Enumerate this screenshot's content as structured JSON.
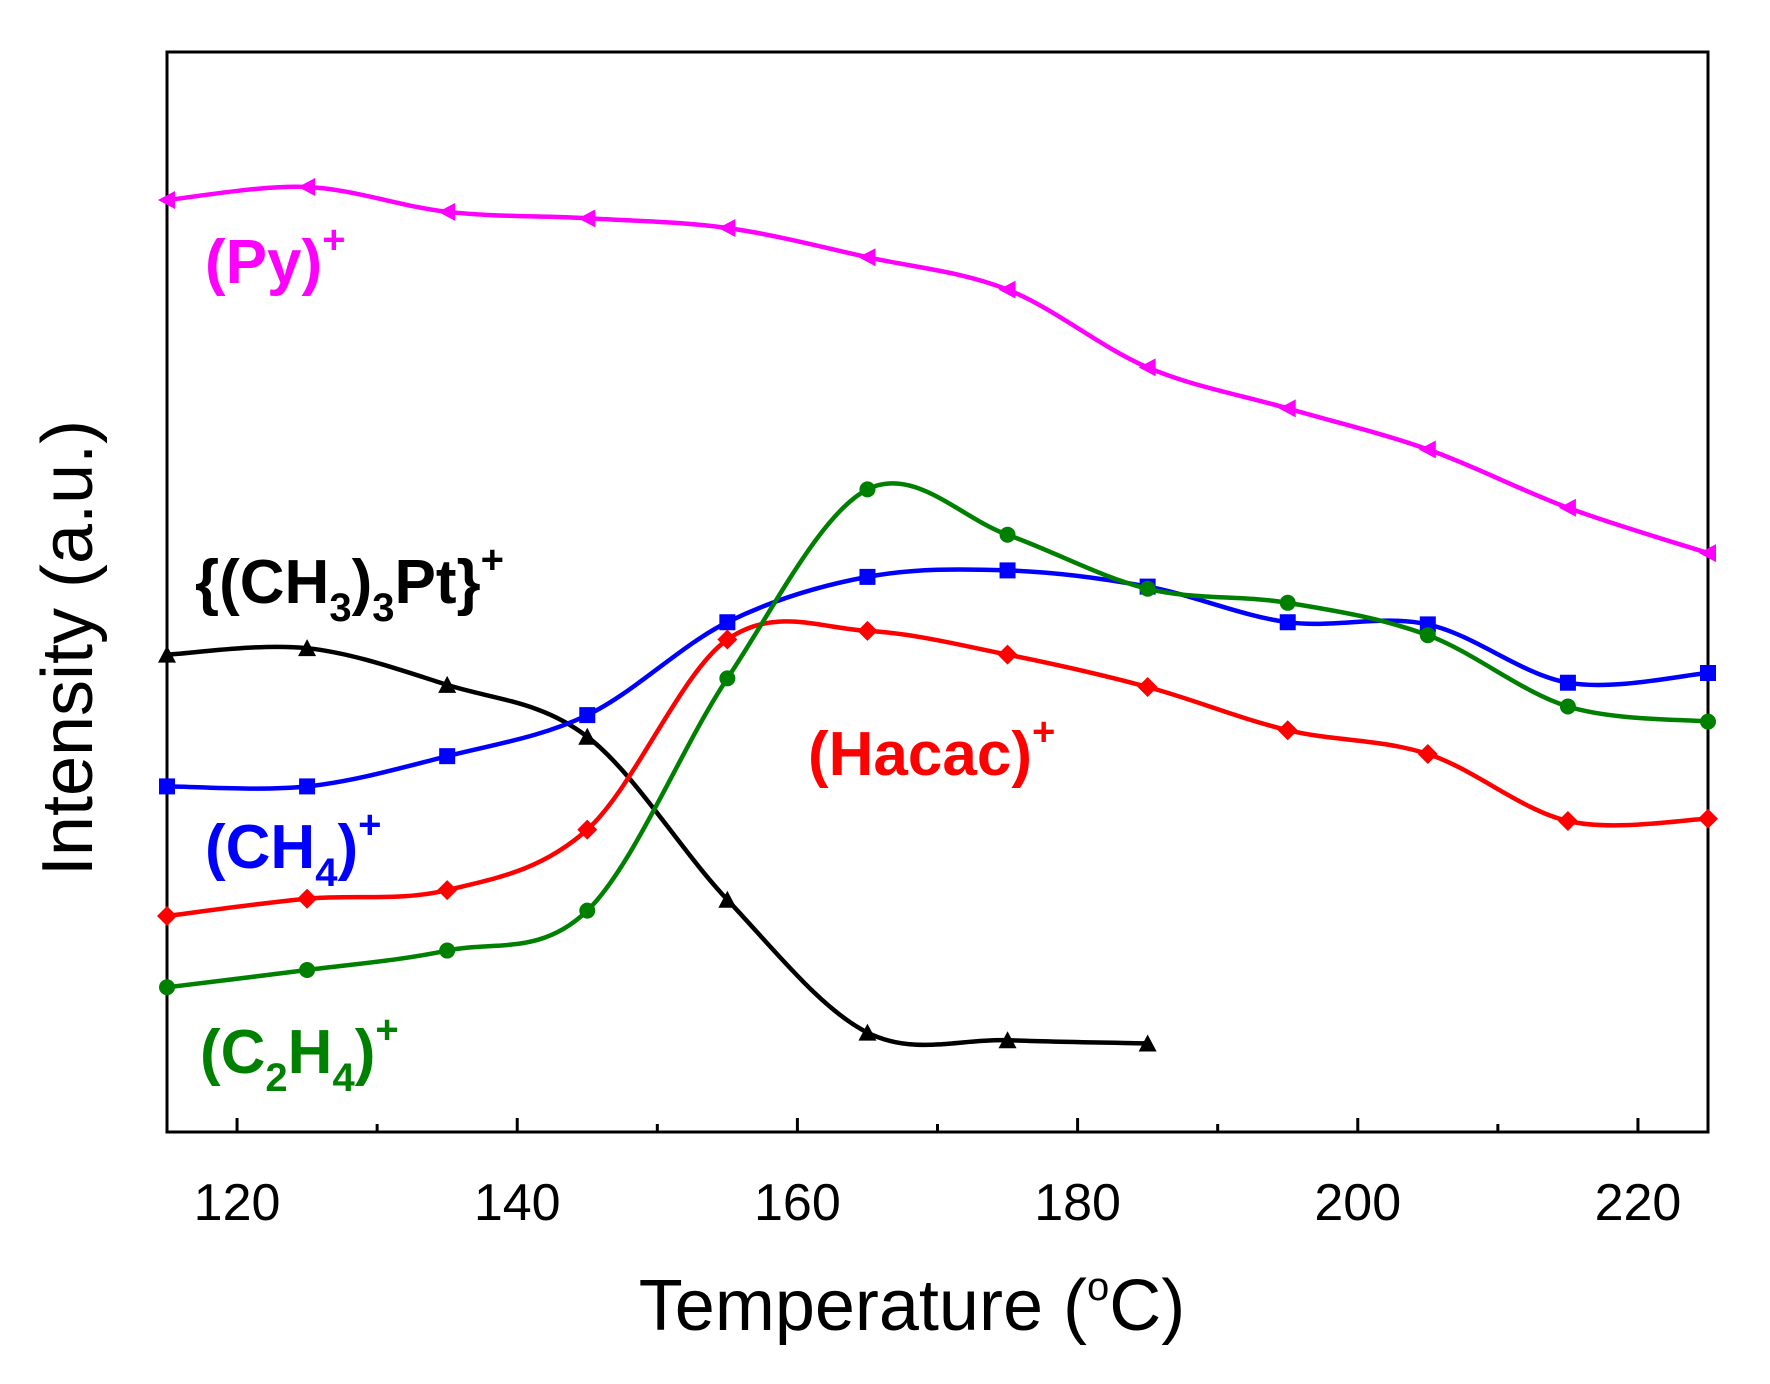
{
  "chart_data": {
    "type": "line",
    "title": "",
    "xlabel": "Temperature (",
    "xlabel_sup": "o",
    "xlabel_end": "C)",
    "ylabel": "Intensity (a.u.)",
    "xlim": [
      115,
      225
    ],
    "ylim": [
      0,
      100
    ],
    "yticks_shown": false,
    "x_ticks": [
      120,
      140,
      160,
      180,
      200,
      220
    ],
    "x_tick_labels": [
      "120",
      "140",
      "160",
      "180",
      "200",
      "220"
    ],
    "series": [
      {
        "name": "(Py)+",
        "label_parts": [
          {
            "t": "(Py)",
            "s": "n"
          },
          {
            "t": "+",
            "s": "sup"
          }
        ],
        "color": "#ff00ff",
        "marker": "triangle-left",
        "x": [
          115,
          125,
          135,
          145,
          155,
          165,
          175,
          185,
          195,
          205,
          215,
          225
        ],
        "y": [
          86.3,
          87.5,
          85.2,
          84.6,
          83.7,
          81.0,
          78.0,
          70.8,
          67.0,
          63.2,
          57.8,
          53.6
        ]
      },
      {
        "name": "{(CH3)3Pt}+",
        "label_parts": [
          {
            "t": "{(CH",
            "s": "n"
          },
          {
            "t": "3",
            "s": "sub"
          },
          {
            "t": ")",
            "s": "n"
          },
          {
            "t": "3",
            "s": "sub"
          },
          {
            "t": "Pt}",
            "s": "n"
          },
          {
            "t": "+",
            "s": "sup"
          }
        ],
        "color": "#000000",
        "marker": "triangle-up",
        "x": [
          115,
          125,
          135,
          145,
          155,
          165,
          175,
          185
        ],
        "y": [
          44.2,
          44.8,
          41.4,
          36.6,
          21.5,
          9.2,
          8.5,
          8.2
        ]
      },
      {
        "name": "(CH4)+",
        "label_parts": [
          {
            "t": "(CH",
            "s": "n"
          },
          {
            "t": "4",
            "s": "sub"
          },
          {
            "t": ")",
            "s": "n"
          },
          {
            "t": "+",
            "s": "sup"
          }
        ],
        "color": "#0000ff",
        "marker": "square",
        "x": [
          115,
          125,
          135,
          145,
          155,
          165,
          175,
          185,
          195,
          205,
          215,
          225
        ],
        "y": [
          32.0,
          32.0,
          34.8,
          38.6,
          47.2,
          51.4,
          52.0,
          50.5,
          47.2,
          47.0,
          41.6,
          42.5
        ]
      },
      {
        "name": "(Hacac)+",
        "label_parts": [
          {
            "t": "(Hacac)",
            "s": "n"
          },
          {
            "t": "+",
            "s": "sup"
          }
        ],
        "color": "#ff0000",
        "marker": "diamond",
        "x": [
          115,
          125,
          135,
          145,
          155,
          165,
          175,
          185,
          195,
          205,
          215,
          225
        ],
        "y": [
          20.0,
          21.6,
          22.4,
          28.0,
          45.6,
          46.4,
          44.2,
          41.2,
          37.2,
          35.0,
          28.8,
          29.0
        ]
      },
      {
        "name": "(C2H4)+",
        "label_parts": [
          {
            "t": "(C",
            "s": "n"
          },
          {
            "t": "2",
            "s": "sub"
          },
          {
            "t": "H",
            "s": "n"
          },
          {
            "t": "4",
            "s": "sub"
          },
          {
            "t": ")",
            "s": "n"
          },
          {
            "t": "+",
            "s": "sup"
          }
        ],
        "color": "#008000",
        "marker": "circle",
        "x": [
          115,
          125,
          135,
          145,
          155,
          165,
          175,
          185,
          195,
          205,
          215,
          225
        ],
        "y": [
          13.4,
          15.0,
          16.8,
          20.5,
          42.0,
          59.5,
          55.3,
          50.3,
          49.0,
          46.0,
          39.4,
          38.0
        ]
      }
    ],
    "series_label_order": [
      "(Py)+",
      "{(CH3)3Pt}+",
      "(Hacac)+",
      "(CH4)+",
      "(C2H4)+"
    ]
  }
}
